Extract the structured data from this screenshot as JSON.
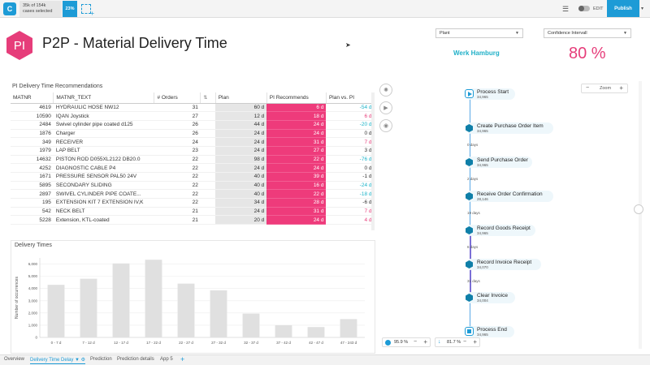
{
  "topbar": {
    "logo": "C",
    "cases_line1": "35k of 154k",
    "cases_line2": "cases selected",
    "selection_percent": "23%",
    "edit_label": "EDIT",
    "publish_label": "Publish"
  },
  "header": {
    "badge": "PI",
    "title": "P2P - Material Delivery Time"
  },
  "filters": {
    "plant_label": "Plant",
    "plant_value": "Werk Hamburg",
    "confidence_label": "Confidence Intervall",
    "confidence_value": "80 %"
  },
  "table": {
    "title": "PI Delivery Time Recommendations",
    "columns": [
      "MATNR",
      "MATNR_TEXT",
      "# Orders",
      "",
      "Plan",
      "PI Recommends",
      "Plan vs. PI"
    ],
    "rows": [
      [
        "4619",
        "HYDRAULIC HOSE NW12",
        "31",
        "60 d",
        "6 d",
        "-54 d",
        "neg"
      ],
      [
        "10590",
        "IQAN Joystick",
        "27",
        "12 d",
        "18 d",
        "6 d",
        "pos"
      ],
      [
        "2484",
        "Swivel cylinder pipe coated d125",
        "26",
        "44 d",
        "24 d",
        "-20 d",
        "neg"
      ],
      [
        "1876",
        "Charger",
        "26",
        "24 d",
        "24 d",
        "0 d",
        "neu"
      ],
      [
        "349",
        "RECEIVER",
        "24",
        "24 d",
        "31 d",
        "7 d",
        "pos"
      ],
      [
        "1979",
        "LAP BELT",
        "23",
        "24 d",
        "27 d",
        "3 d",
        "neu"
      ],
      [
        "14632",
        "PISTON ROD D055XL2122 DB20.0",
        "22",
        "98 d",
        "22 d",
        "-76 d",
        "neg"
      ],
      [
        "4252",
        "DIAGNOSTIC CABLE P4",
        "22",
        "24 d",
        "24 d",
        "0 d",
        "neu"
      ],
      [
        "1671",
        "PRESSURE SENSOR PAL50 24V",
        "22",
        "40 d",
        "39 d",
        "-1 d",
        "neu"
      ],
      [
        "5895",
        "SECONDARY SLIDING",
        "22",
        "40 d",
        "16 d",
        "-24 d",
        "neg"
      ],
      [
        "2897",
        "SWIVEL CYLINDER PIPE COATE...",
        "22",
        "40 d",
        "22 d",
        "-18 d",
        "neg"
      ],
      [
        "195",
        "EXTENSION KIT 7 EXTENSION IV,K",
        "22",
        "34 d",
        "28 d",
        "-6 d",
        "neu"
      ],
      [
        "542",
        "NECK BELT",
        "21",
        "24 d",
        "31 d",
        "7 d",
        "pos"
      ],
      [
        "5228",
        "Extension, KTL-coated",
        "21",
        "20 d",
        "24 d",
        "4 d",
        "pos"
      ]
    ]
  },
  "chart_data": {
    "type": "bar",
    "title": "Delivery Times",
    "xlabel": "",
    "ylabel": "Number of occurrences",
    "categories": [
      "0 - 7 d",
      "7 - 12 d",
      "12 - 17 d",
      "17 - 22 d",
      "22 - 27 d",
      "27 - 32 d",
      "32 - 37 d",
      "37 - 42 d",
      "42 - 47 d",
      "47 - 243 d"
    ],
    "values": [
      4300,
      4800,
      6050,
      6350,
      4400,
      3850,
      1950,
      1000,
      850,
      1500
    ],
    "yticks": [
      "0",
      "1,000",
      "2,000",
      "3,000",
      "4,000",
      "5,000",
      "6,000"
    ],
    "ylim": [
      0,
      6500
    ],
    "color": "#e0e0e0"
  },
  "process": {
    "zoom_label": "Zoom",
    "nodes": [
      {
        "label": "Process Start",
        "count": "34,965"
      },
      {
        "label": "Create Purchase Order Item",
        "count": "34,965"
      },
      {
        "label": "Send Purchase Order",
        "count": "34,965"
      },
      {
        "label": "Receive Order Confirmation",
        "count": "28,146"
      },
      {
        "label": "Record Goods Receipt",
        "count": "34,965"
      },
      {
        "label": "Record Invoice Receipt",
        "count": "34,070"
      },
      {
        "label": "Clear Invoice",
        "count": "34,004"
      },
      {
        "label": "Process End",
        "count": "34,965"
      }
    ],
    "edges": [
      "0 days",
      "2 days",
      "19 days",
      "6 days",
      "31 days"
    ]
  },
  "stats": {
    "activities_value": "95.9 %",
    "connections_value": "81.7 %"
  },
  "tabs": [
    "Overview",
    "Delivery Time Delay",
    "Prediction",
    "Prediction details",
    "App 5"
  ]
}
